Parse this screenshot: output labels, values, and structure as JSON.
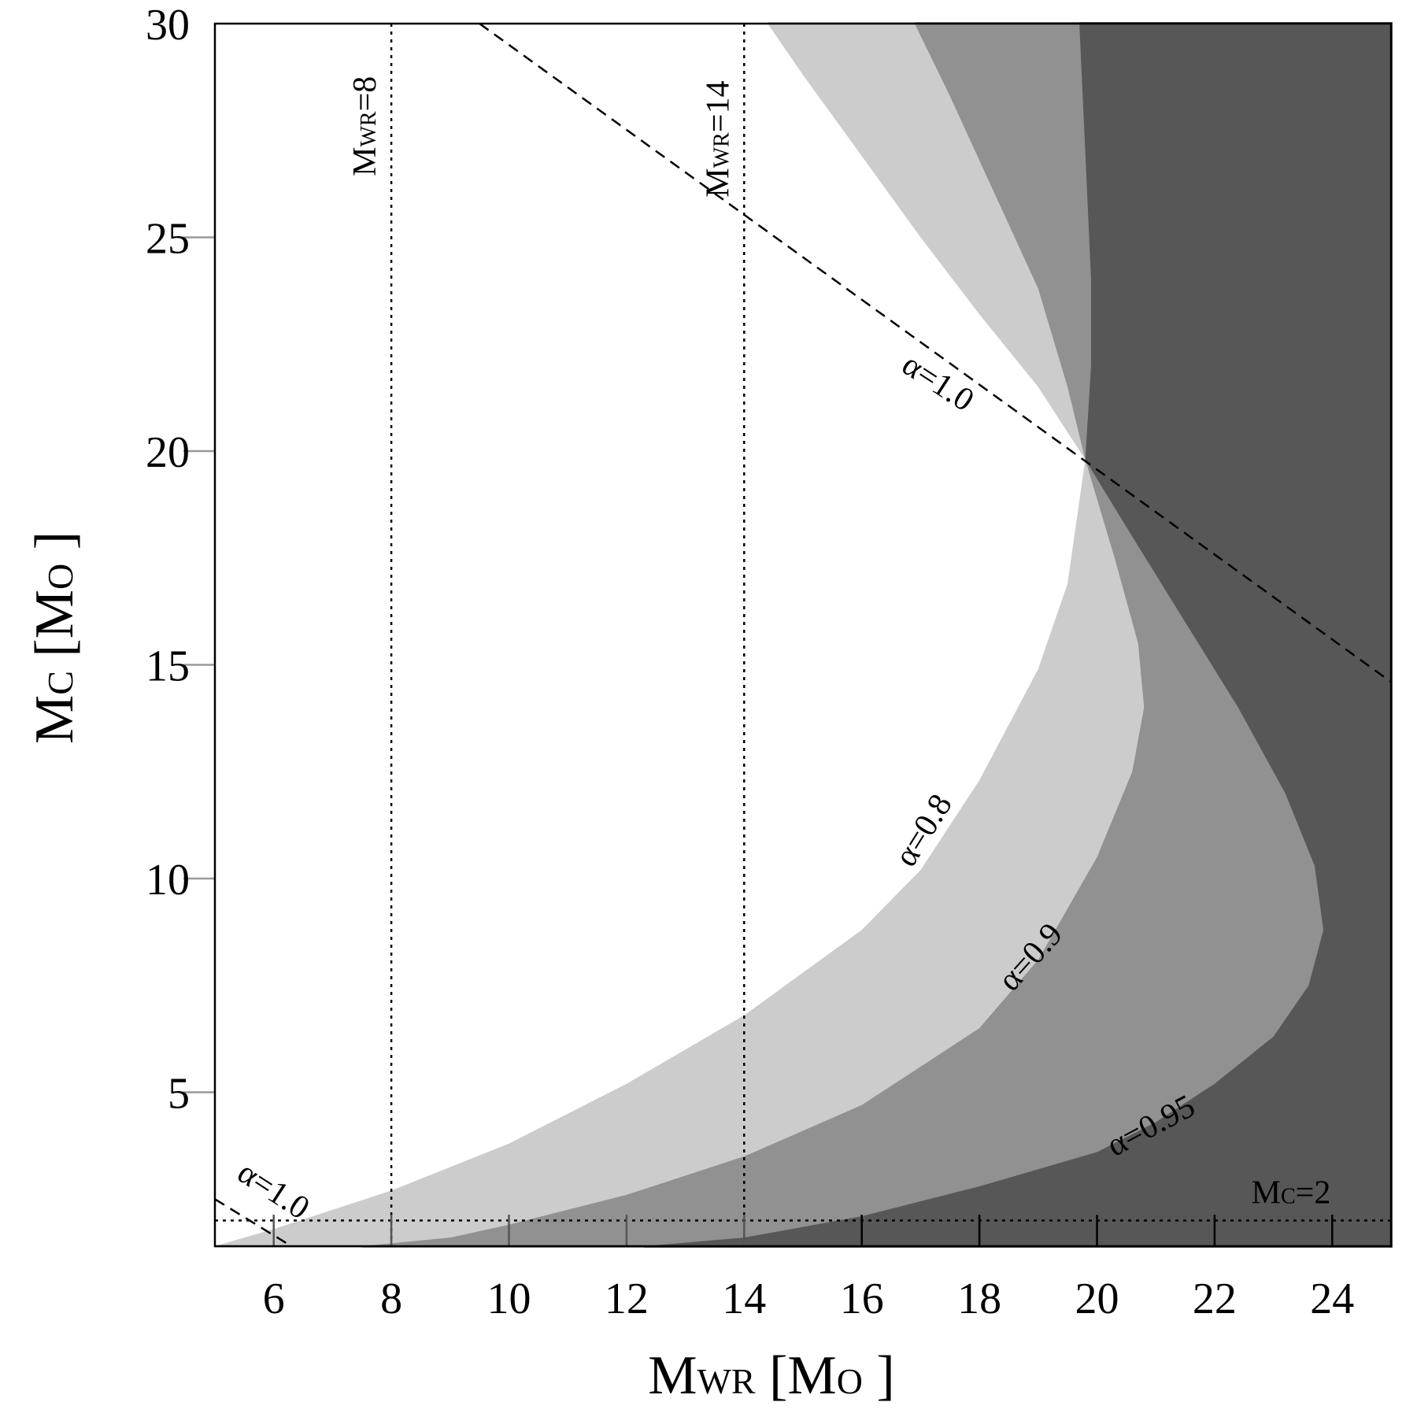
{
  "chart_data": {
    "type": "area",
    "title": "",
    "xlabel": {
      "main": "M",
      "sub": "WR",
      "unit_open": " [M",
      "unit_sub": "O",
      "unit_close": " ]"
    },
    "ylabel": {
      "main": "M",
      "sub": "C",
      "unit_open": " [M",
      "unit_sub": "O",
      "unit_close": " ]"
    },
    "xlim": [
      5,
      25
    ],
    "ylim": [
      1.4,
      30
    ],
    "x_ticks": [
      "6",
      "8",
      "10",
      "12",
      "14",
      "16",
      "18",
      "20",
      "22",
      "24"
    ],
    "y_ticks": [
      "5",
      "10",
      "15",
      "20",
      "25",
      "30"
    ],
    "grid": false,
    "region_colors": [
      "#ffffff",
      "#cccccc",
      "#919191",
      "#575757"
    ],
    "boundaries": [
      {
        "alpha": "0.8",
        "label": "α=0.8",
        "color": "#cccccc",
        "lower_branch": [
          [
            5,
            1.4
          ],
          [
            6,
            1.8
          ],
          [
            8,
            2.7
          ],
          [
            10,
            3.8
          ],
          [
            12,
            5.2
          ],
          [
            14,
            6.8
          ],
          [
            16,
            8.8
          ],
          [
            17,
            10.2
          ],
          [
            18,
            12.3
          ],
          [
            19,
            14.9
          ],
          [
            19.5,
            16.9
          ],
          [
            19.8,
            19.8
          ]
        ],
        "upper_branch": [
          [
            14.4,
            30
          ],
          [
            15,
            28.8
          ],
          [
            16,
            26.9
          ],
          [
            17,
            25.0
          ],
          [
            18,
            23.2
          ],
          [
            19,
            21.5
          ],
          [
            19.8,
            19.8
          ]
        ]
      },
      {
        "alpha": "0.9",
        "label": "α=0.9",
        "color": "#919191",
        "lower_branch": [
          [
            7.5,
            1.4
          ],
          [
            9,
            1.6
          ],
          [
            10,
            1.9
          ],
          [
            12,
            2.6
          ],
          [
            14,
            3.5
          ],
          [
            16,
            4.7
          ],
          [
            18,
            6.5
          ],
          [
            19,
            8.1
          ],
          [
            20,
            10.5
          ],
          [
            20.6,
            12.5
          ],
          [
            20.8,
            14.0
          ],
          [
            20.7,
            15.5
          ],
          [
            20.3,
            17.5
          ],
          [
            19.8,
            19.8
          ]
        ],
        "upper_branch": [
          [
            16.9,
            30
          ],
          [
            17.5,
            28.3
          ],
          [
            18,
            26.8
          ],
          [
            18.5,
            25.3
          ],
          [
            19,
            23.8
          ],
          [
            19.5,
            21.5
          ],
          [
            19.8,
            19.8
          ]
        ]
      },
      {
        "alpha": "0.95",
        "label": "α=0.95",
        "color": "#575757",
        "lower_branch": [
          [
            12.3,
            1.4
          ],
          [
            14,
            1.6
          ],
          [
            16,
            2.1
          ],
          [
            18,
            2.8
          ],
          [
            20,
            3.6
          ],
          [
            21,
            4.3
          ],
          [
            22,
            5.2
          ],
          [
            23,
            6.3
          ],
          [
            23.6,
            7.5
          ],
          [
            23.85,
            8.8
          ],
          [
            23.7,
            10.3
          ],
          [
            23.2,
            12.0
          ],
          [
            22.4,
            14.0
          ],
          [
            21.5,
            16.0
          ],
          [
            20.6,
            18.0
          ],
          [
            19.8,
            19.8
          ]
        ],
        "upper_branch": [
          [
            19.7,
            30
          ],
          [
            19.8,
            27
          ],
          [
            19.9,
            24
          ],
          [
            19.9,
            22
          ],
          [
            19.8,
            19.8
          ]
        ]
      }
    ],
    "reference_lines": [
      {
        "id": "alpha-1-upper",
        "style": "dashed",
        "points": [
          [
            9.5,
            30
          ],
          [
            25,
            14.6
          ]
        ],
        "label": "α=1.0"
      },
      {
        "id": "alpha-1-lower",
        "style": "dashed",
        "points": [
          [
            5,
            2.5
          ],
          [
            6.3,
            1.4
          ]
        ],
        "label": "α=1.0"
      },
      {
        "id": "mwr-8",
        "style": "dotted",
        "x": 8,
        "label": {
          "main": "M",
          "sub": "WR",
          "suffix": "=8"
        }
      },
      {
        "id": "mwr-14",
        "style": "dotted",
        "x": 14,
        "label": {
          "main": "M",
          "sub": "WR",
          "suffix": "=14"
        }
      },
      {
        "id": "mc-2",
        "style": "dotted",
        "y": 2,
        "label": {
          "main": "M",
          "sub": "C",
          "suffix": "=2"
        }
      }
    ]
  }
}
